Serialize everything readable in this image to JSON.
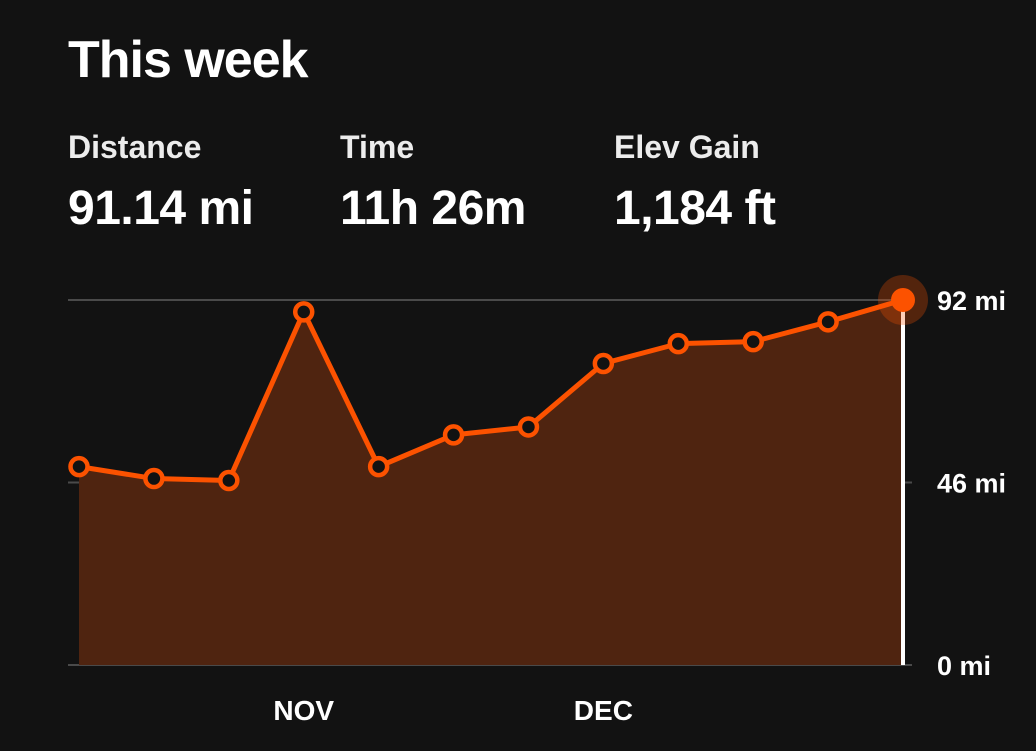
{
  "header": {
    "title": "This week"
  },
  "stats": [
    {
      "label": "Distance",
      "value": "91.14 mi"
    },
    {
      "label": "Time",
      "value": "11h 26m"
    },
    {
      "label": "Elev Gain",
      "value": "1,184 ft"
    }
  ],
  "colors": {
    "background": "#121212",
    "accent": "#fc5200",
    "area_fill": "#4f2410",
    "gridline": "#4a4a4a",
    "cursor": "#ffffff"
  },
  "chart_data": {
    "type": "area",
    "x": [
      1,
      2,
      3,
      4,
      5,
      6,
      7,
      8,
      9,
      10,
      11,
      12
    ],
    "values": [
      50,
      47,
      46.5,
      89,
      50,
      58,
      60,
      76,
      81,
      81.5,
      86.5,
      92
    ],
    "unit": "mi",
    "ylim": [
      0,
      92
    ],
    "yticks": [
      {
        "value": 0,
        "label": "0 mi"
      },
      {
        "value": 46,
        "label": "46 mi"
      },
      {
        "value": 92,
        "label": "92 mi"
      }
    ],
    "xticks": [
      {
        "x": 4,
        "label": "NOV"
      },
      {
        "x": 8,
        "label": "DEC"
      }
    ],
    "highlighted_index": 11,
    "grid": true,
    "y_axis_position": "right"
  }
}
